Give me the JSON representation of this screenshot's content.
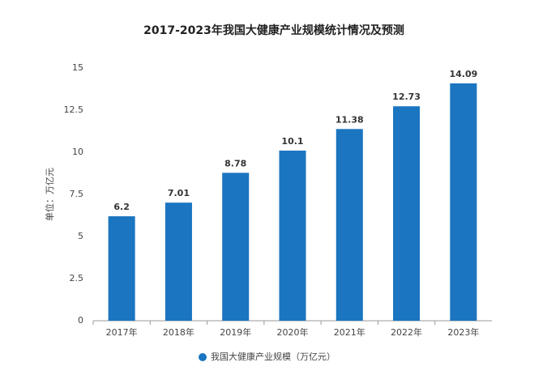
{
  "chart_data": {
    "type": "bar",
    "title": "2017-2023年我国大健康产业规模统计情况及预测",
    "y_label": "单位：万亿元",
    "categories": [
      "2017年",
      "2018年",
      "2019年",
      "2020年",
      "2021年",
      "2022年",
      "2023年"
    ],
    "series": [
      {
        "name": "我国大健康产业规模（万亿元）",
        "color": "#1b75c0",
        "values": [
          6.2,
          7.01,
          8.78,
          10.1,
          11.38,
          12.73,
          14.09
        ]
      }
    ],
    "ylim": [
      0,
      15
    ],
    "yticks": [
      0,
      2.5,
      5,
      7.5,
      10,
      12.5,
      15
    ],
    "grid": false,
    "legend": "bottom"
  }
}
